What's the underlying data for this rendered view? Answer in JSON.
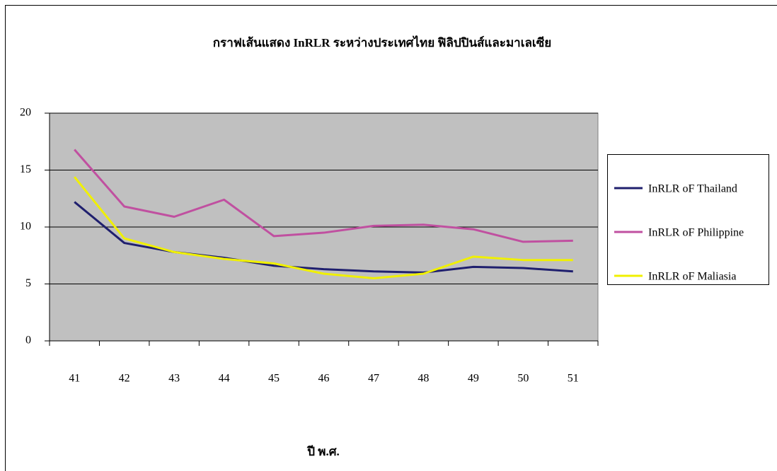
{
  "chart_data": {
    "type": "line",
    "title": "กราฟเส้นแสดง InRLR ระหว่างประเทศไทย ฟิลิปปินส์และมาเลเซีย",
    "x_label": "ปี พ.ศ.",
    "categories": [
      "41",
      "42",
      "43",
      "44",
      "45",
      "46",
      "47",
      "48",
      "49",
      "50",
      "51"
    ],
    "series": [
      {
        "name": "InRLR oF Thailand",
        "color": "#1f1f6e",
        "values": [
          12.2,
          8.6,
          7.8,
          7.3,
          6.6,
          6.3,
          6.1,
          6.0,
          6.5,
          6.4,
          6.1
        ]
      },
      {
        "name": "InRLR oF Philippine",
        "color": "#c050a0",
        "values": [
          16.8,
          11.8,
          10.9,
          12.4,
          9.2,
          9.5,
          10.1,
          10.2,
          9.8,
          8.7,
          8.8
        ]
      },
      {
        "name": "InRLR oF Maliasia",
        "color": "#f0f000",
        "values": [
          14.4,
          9.0,
          7.8,
          7.2,
          6.8,
          5.9,
          5.5,
          5.9,
          7.4,
          7.1,
          7.1
        ]
      }
    ],
    "ylim": [
      0,
      20
    ],
    "yticks": [
      0,
      5,
      10,
      15,
      20
    ],
    "grid": true,
    "legend": "right"
  }
}
